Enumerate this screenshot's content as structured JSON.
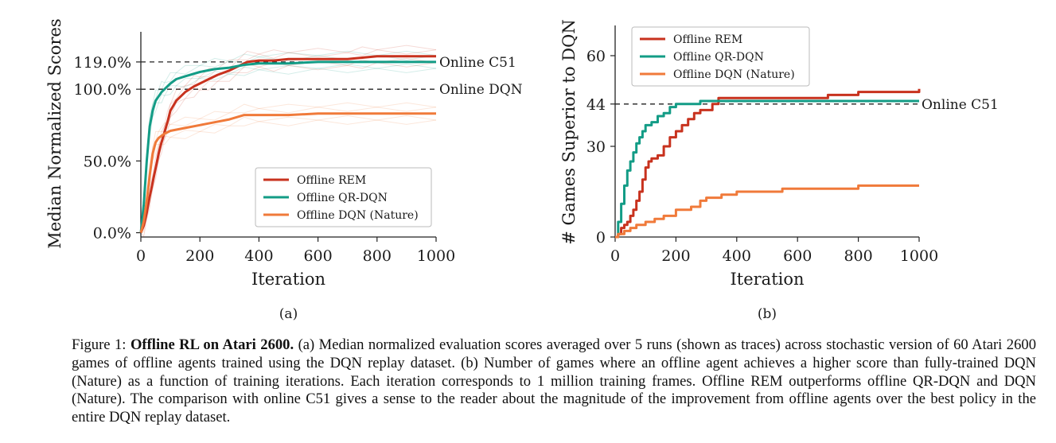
{
  "chart_data": [
    {
      "type": "line",
      "panel_label": "(a)",
      "xlabel": "Iteration",
      "ylabel": "Median Normalized Scores",
      "xlim": [
        0,
        1000
      ],
      "ylim": [
        -3,
        140
      ],
      "xticks": [
        0,
        200,
        400,
        600,
        800,
        1000
      ],
      "xtick_labels": [
        "0",
        "200",
        "400",
        "600",
        "800",
        "1000"
      ],
      "yticks": [
        0,
        50,
        100,
        119
      ],
      "ytick_labels": [
        "0.0%",
        "50.0%",
        "100.0%",
        "119.0%"
      ],
      "reference_lines": [
        {
          "y": 119,
          "label": "Online C51"
        },
        {
          "y": 100,
          "label": "Online DQN"
        }
      ],
      "legend": {
        "position": "lower-right",
        "entries": [
          "Offline REM",
          "Offline QR-DQN",
          "Offline DQN (Nature)"
        ]
      },
      "series": [
        {
          "name": "Offline REM",
          "color": "#c8321e",
          "x": [
            0,
            10,
            20,
            30,
            40,
            50,
            60,
            70,
            80,
            90,
            100,
            120,
            150,
            180,
            200,
            230,
            260,
            300,
            330,
            360,
            400,
            450,
            500,
            600,
            700,
            750,
            800,
            900,
            1000
          ],
          "y": [
            0,
            5,
            14,
            25,
            35,
            45,
            55,
            63,
            70,
            77,
            85,
            92,
            98,
            102,
            104,
            107,
            110,
            113,
            116,
            119,
            120,
            120,
            121,
            121,
            121,
            122,
            123,
            123,
            123
          ]
        },
        {
          "name": "Offline QR-DQN",
          "color": "#139c86",
          "x": [
            0,
            10,
            20,
            30,
            40,
            50,
            60,
            70,
            80,
            100,
            120,
            150,
            200,
            250,
            300,
            350,
            400,
            500,
            600,
            700,
            800,
            900,
            1000
          ],
          "y": [
            0,
            20,
            50,
            74,
            85,
            92,
            95,
            98,
            100,
            104,
            107,
            109,
            112,
            114,
            115,
            117,
            118,
            118,
            119,
            119,
            119,
            119,
            119
          ]
        },
        {
          "name": "Offline DQN (Nature)",
          "color": "#f07a3a",
          "x": [
            0,
            10,
            20,
            30,
            40,
            50,
            60,
            80,
            100,
            150,
            200,
            250,
            300,
            350,
            400,
            500,
            600,
            700,
            800,
            900,
            1000
          ],
          "y": [
            0,
            8,
            22,
            40,
            55,
            63,
            66,
            69,
            71,
            73,
            75,
            77,
            79,
            82,
            82,
            82,
            83,
            83,
            83,
            83,
            83
          ]
        }
      ]
    },
    {
      "type": "line",
      "panel_label": "(b)",
      "xlabel": "Iteration",
      "ylabel": "# Games Superior to DQN",
      "xlim": [
        0,
        1000
      ],
      "ylim": [
        0,
        70
      ],
      "xticks": [
        0,
        200,
        400,
        600,
        800,
        1000
      ],
      "xtick_labels": [
        "0",
        "200",
        "400",
        "600",
        "800",
        "1000"
      ],
      "yticks": [
        0,
        30,
        44,
        60
      ],
      "ytick_labels": [
        "0",
        "30",
        "44",
        "60"
      ],
      "reference_lines": [
        {
          "y": 44,
          "label": "Online C51"
        }
      ],
      "legend": {
        "position": "top-left",
        "entries": [
          "Offline REM",
          "Offline QR-DQN",
          "Offline DQN (Nature)"
        ]
      },
      "series": [
        {
          "name": "Offline REM",
          "color": "#c8321e",
          "x": [
            0,
            10,
            20,
            30,
            40,
            50,
            60,
            70,
            80,
            90,
            100,
            110,
            120,
            140,
            160,
            180,
            200,
            220,
            240,
            260,
            280,
            300,
            320,
            340,
            400,
            500,
            600,
            700,
            800,
            900,
            1000
          ],
          "y": [
            0,
            1,
            3,
            4,
            5,
            7,
            9,
            12,
            15,
            19,
            23,
            25,
            26,
            27,
            30,
            33,
            35,
            37,
            39,
            41,
            42,
            42,
            44,
            46,
            46,
            46,
            46,
            47,
            48,
            48,
            49
          ]
        },
        {
          "name": "Offline QR-DQN",
          "color": "#139c86",
          "x": [
            0,
            10,
            20,
            30,
            40,
            50,
            60,
            70,
            80,
            90,
            100,
            120,
            140,
            160,
            180,
            200,
            240,
            280,
            300,
            400,
            500,
            600,
            700,
            800,
            900,
            1000
          ],
          "y": [
            0,
            5,
            11,
            17,
            22,
            25,
            28,
            31,
            33,
            35,
            37,
            38,
            40,
            41,
            43,
            44,
            44,
            45,
            45,
            45,
            45,
            45,
            45,
            45,
            45,
            45
          ]
        },
        {
          "name": "Offline DQN (Nature)",
          "color": "#f07a3a",
          "x": [
            0,
            10,
            30,
            50,
            70,
            100,
            130,
            160,
            200,
            250,
            280,
            300,
            350,
            400,
            500,
            550,
            600,
            700,
            800,
            900,
            1000
          ],
          "y": [
            0,
            1,
            2,
            3,
            4,
            5,
            6,
            7,
            9,
            10,
            12,
            13,
            14,
            15,
            15,
            16,
            16,
            16,
            17,
            17,
            17
          ]
        }
      ]
    }
  ],
  "caption": {
    "prefix": "Figure 1: ",
    "bold": "Offline RL on Atari 2600.",
    "text": " (a) Median normalized evaluation scores averaged over 5 runs (shown as traces) across stochastic version of 60 Atari 2600 games of offline agents trained using the DQN replay dataset. (b) Number of games where an offline agent achieves a higher score than fully-trained DQN (Nature) as a function of training iterations. Each iteration corresponds to 1 million training frames. Offline REM outperforms offline QR-DQN and DQN (Nature). The comparison with online C51 gives a sense to the reader about the magnitude of the improvement from offline agents over the best policy in the entire DQN replay dataset."
  }
}
